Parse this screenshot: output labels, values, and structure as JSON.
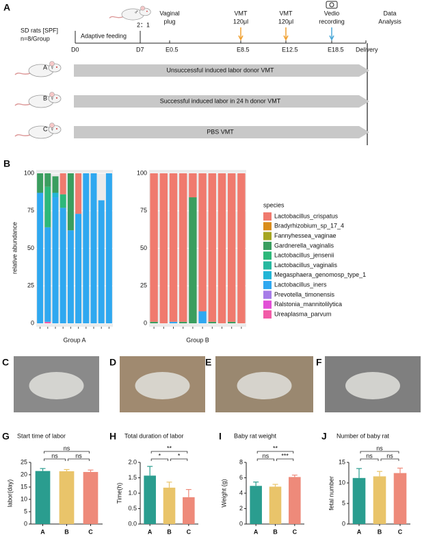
{
  "timeline": {
    "label": "A",
    "left": [
      "SD rats [SPF]",
      "n=8/Group"
    ],
    "phase": "Adaptive feeding",
    "mating": {
      "male": "♂",
      "ratio": "2：1"
    },
    "points": [
      "D0",
      "D7",
      "E0.5",
      "E8.5",
      "E12.5",
      "E18.5",
      "Delivery"
    ],
    "events": [
      {
        "lines": [
          "Vaginal",
          "plug"
        ]
      },
      {
        "lines": [
          "VMT",
          "120μl"
        ]
      },
      {
        "lines": [
          "VMT",
          "120μl"
        ]
      },
      {
        "lines": [
          "Vedio",
          "recording"
        ]
      },
      {
        "lines": [
          "Data",
          "Analysis"
        ]
      }
    ],
    "groups": [
      {
        "group": "A",
        "sex": "♀",
        "text": "Unsuccessful induced labor donor VMT"
      },
      {
        "group": "B",
        "sex": "♀",
        "text": "Successful induced labor in 24 h donor VMT"
      },
      {
        "group": "C",
        "sex": "♀",
        "text": "PBS VMT"
      }
    ]
  },
  "legend": {
    "title": "species",
    "items": [
      {
        "name": "Lactobacillus_crispatus",
        "color": "#f07a6e"
      },
      {
        "name": "Bradyrhizobium_sp_17_4",
        "color": "#d98c1a"
      },
      {
        "name": "Fannyhessea_vaginae",
        "color": "#a5a520"
      },
      {
        "name": "Gardnerella_vaginalis",
        "color": "#3a9e5f"
      },
      {
        "name": "Lactobacillus_jensenii",
        "color": "#2db87a"
      },
      {
        "name": "Lactobacillus_vaginalis",
        "color": "#27b8a0"
      },
      {
        "name": "Megasphaera_genomosp_type_1",
        "color": "#22b5d6"
      },
      {
        "name": "Lactobacillus_iners",
        "color": "#2fa8f0"
      },
      {
        "name": "Prevotella_timonensis",
        "color": "#a67ce8"
      },
      {
        "name": "Ralstonia_mannitolilytica",
        "color": "#e24fd6"
      },
      {
        "name": "Ureaplasma_parvum",
        "color": "#f25ca8"
      }
    ]
  },
  "photos": [
    "C",
    "D",
    "E",
    "F"
  ],
  "chart_data": [
    {
      "type": "stacked",
      "label": "B",
      "ylabel": "relative abundance",
      "xlabel": "Group A",
      "ylim": [
        0,
        100
      ],
      "yticks": [
        0,
        25,
        50,
        75,
        100
      ],
      "series": [
        {
          "values": [
            0,
            0,
            0,
            14,
            0,
            27,
            0,
            0,
            0,
            0
          ]
        },
        {
          "values": [
            0,
            0,
            0,
            0,
            0,
            0,
            0,
            0,
            0,
            0
          ]
        },
        {
          "values": [
            0,
            0,
            0,
            0,
            0,
            0,
            0,
            0,
            0,
            0
          ]
        },
        {
          "values": [
            13,
            9,
            11,
            0,
            38,
            0,
            0,
            0,
            0,
            0
          ]
        },
        {
          "values": [
            0,
            27,
            0,
            9,
            0,
            0,
            0,
            0,
            0,
            0
          ]
        },
        {
          "values": [
            0,
            0,
            0,
            0,
            0,
            0,
            0,
            0,
            0,
            0
          ]
        },
        {
          "values": [
            0,
            0,
            3,
            0,
            0,
            0,
            0,
            0,
            0,
            0
          ]
        },
        {
          "values": [
            87,
            63,
            84,
            77,
            62,
            73,
            100,
            100,
            82,
            100
          ]
        },
        {
          "values": [
            0,
            0,
            0,
            0,
            0,
            0,
            0,
            0,
            0,
            0
          ]
        },
        {
          "values": [
            0,
            0,
            0,
            0,
            0,
            0,
            0,
            0,
            0,
            0
          ]
        },
        {
          "values": [
            0,
            1,
            0,
            0,
            0,
            0,
            0,
            0,
            0,
            0
          ]
        }
      ]
    },
    {
      "type": "stacked",
      "xlabel": "Group B",
      "ylim": [
        0,
        100
      ],
      "yticks": [
        0,
        25,
        50,
        75,
        100
      ],
      "series": [
        {
          "values": [
            99,
            100,
            99,
            99,
            16,
            92,
            99,
            100,
            99,
            100
          ]
        },
        {
          "values": [
            0,
            0,
            0,
            0,
            0,
            0,
            0,
            0,
            0,
            0
          ]
        },
        {
          "values": [
            0,
            0,
            0,
            0,
            0,
            0,
            0,
            0,
            0,
            0
          ]
        },
        {
          "values": [
            1,
            0,
            0,
            1,
            84,
            0,
            1,
            0,
            1,
            0
          ]
        },
        {
          "values": [
            0,
            0,
            0,
            0,
            0,
            0,
            0,
            0,
            0,
            0
          ]
        },
        {
          "values": [
            0,
            0,
            0,
            0,
            0,
            0,
            0,
            0,
            0,
            0
          ]
        },
        {
          "values": [
            0,
            0,
            0,
            0,
            0,
            0,
            0,
            0,
            0,
            0
          ]
        },
        {
          "values": [
            0,
            0,
            1,
            0,
            0,
            8,
            0,
            0,
            0,
            0
          ]
        },
        {
          "values": [
            0,
            0,
            0,
            0,
            0,
            0,
            0,
            0,
            0,
            0
          ]
        },
        {
          "values": [
            0,
            0,
            0,
            0,
            0,
            0,
            0,
            0,
            0,
            0
          ]
        },
        {
          "values": [
            0,
            0,
            0,
            0,
            0,
            0,
            0,
            0,
            0,
            0
          ]
        }
      ]
    },
    {
      "type": "bar",
      "label": "G",
      "title": "Start time of labor",
      "ylabel": "labor(day)",
      "categories": [
        "A",
        "B",
        "C"
      ],
      "values": [
        21.5,
        21.4,
        21.1
      ],
      "errors": [
        1.0,
        0.7,
        0.8
      ],
      "colors": [
        "#2a9d8f",
        "#e9c46a",
        "#ee8a7a"
      ],
      "ylim": [
        0,
        25
      ],
      "yticks": [
        0,
        5,
        10,
        15,
        20,
        25
      ],
      "significance": [
        {
          "pair": [
            "A",
            "B"
          ],
          "label": "ns"
        },
        {
          "pair": [
            "B",
            "C"
          ],
          "label": "ns"
        },
        {
          "pair": [
            "A",
            "C"
          ],
          "label": "ns"
        }
      ]
    },
    {
      "type": "bar",
      "label": "H",
      "title": "Total duration of labor",
      "ylabel": "Time(h)",
      "categories": [
        "A",
        "B",
        "C"
      ],
      "values": [
        1.57,
        1.18,
        0.87
      ],
      "errors": [
        0.3,
        0.18,
        0.25
      ],
      "colors": [
        "#2a9d8f",
        "#e9c46a",
        "#ee8a7a"
      ],
      "ylim": [
        0,
        2
      ],
      "yticks": [
        {
          "value": 0,
          "label": "0.0"
        },
        {
          "value": 0.5,
          "label": "0.5"
        },
        {
          "value": 1,
          "label": "1.0"
        },
        {
          "value": 1.5,
          "label": "1.5"
        },
        {
          "value": 2,
          "label": "2.0"
        }
      ],
      "significance": [
        {
          "pair": [
            "A",
            "B"
          ],
          "label": "*"
        },
        {
          "pair": [
            "B",
            "C"
          ],
          "label": "*"
        },
        {
          "pair": [
            "A",
            "C"
          ],
          "label": "**"
        }
      ]
    },
    {
      "type": "bar",
      "label": "I",
      "title": "Baby rat weight",
      "ylabel": "Weight (g)",
      "categories": [
        "A",
        "B",
        "C"
      ],
      "values": [
        4.95,
        4.85,
        6.1
      ],
      "errors": [
        0.5,
        0.3,
        0.25
      ],
      "colors": [
        "#2a9d8f",
        "#e9c46a",
        "#ee8a7a"
      ],
      "ylim": [
        0,
        8
      ],
      "yticks": [
        0,
        2,
        4,
        6,
        8
      ],
      "significance": [
        {
          "pair": [
            "A",
            "B"
          ],
          "label": "ns"
        },
        {
          "pair": [
            "B",
            "C"
          ],
          "label": "***"
        },
        {
          "pair": [
            "A",
            "C"
          ],
          "label": "**"
        }
      ]
    },
    {
      "type": "bar",
      "label": "J",
      "title": "Number of baby rat",
      "ylabel": "fetal number",
      "categories": [
        "A",
        "B",
        "C"
      ],
      "values": [
        11.2,
        11.6,
        12.4
      ],
      "errors": [
        2.3,
        1.2,
        1.2
      ],
      "colors": [
        "#2a9d8f",
        "#e9c46a",
        "#ee8a7a"
      ],
      "ylim": [
        0,
        15
      ],
      "yticks": [
        0,
        5,
        10,
        15
      ],
      "significance": [
        {
          "pair": [
            "A",
            "B"
          ],
          "label": "ns"
        },
        {
          "pair": [
            "B",
            "C"
          ],
          "label": "ns"
        },
        {
          "pair": [
            "A",
            "C"
          ],
          "label": "ns"
        }
      ]
    }
  ]
}
